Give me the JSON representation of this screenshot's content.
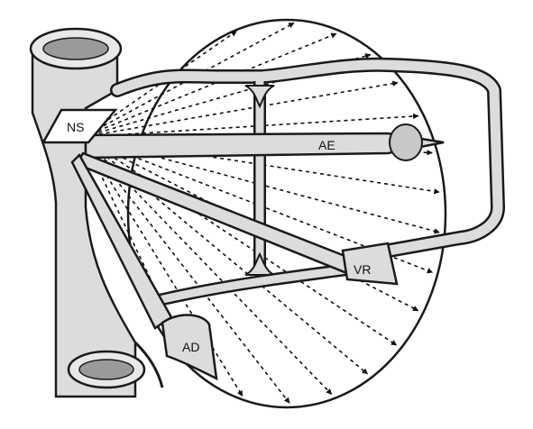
{
  "labels": {
    "ns": "NS",
    "ae": "AE",
    "vr": "VR",
    "ad": "AD"
  },
  "colors": {
    "outline": "#1a1a1a",
    "fill": "#dcdcdc",
    "fill_light": "#e8e8e8",
    "tube_inner": "#9a9a9a",
    "background": "#ffffff"
  }
}
